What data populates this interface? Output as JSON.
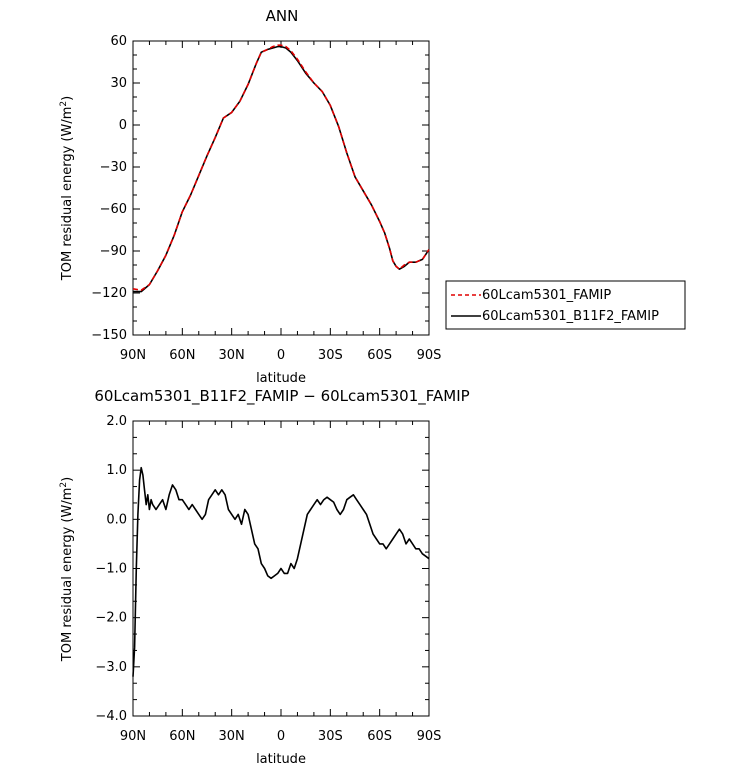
{
  "chart_data": [
    {
      "type": "line",
      "title": "ANN",
      "xlabel": "latitude",
      "ylabel": "TOM residual energy  (W/m²)",
      "ylabel_main": "TOM residual energy  (W/m",
      "ylabel_sup": "2",
      "ylabel_close": ")",
      "xlim": [
        90,
        -90
      ],
      "ylim": [
        -150,
        60
      ],
      "xticks": [
        90,
        60,
        30,
        0,
        -30,
        -60,
        -90
      ],
      "xtick_labels": [
        "90N",
        "60N",
        "30N",
        "0",
        "30S",
        "60S",
        "90S"
      ],
      "yticks": [
        60,
        30,
        0,
        -30,
        -60,
        -90,
        -120,
        -150
      ],
      "ytick_labels": [
        "60",
        "30",
        "0",
        "−30",
        "−60",
        "−90",
        "−120",
        "−150"
      ],
      "legend_position": "right, outside plot",
      "series": [
        {
          "name": "60Lcam5301_FAMIP",
          "color": "#e00000",
          "dash": "dashed",
          "points": [
            [
              90,
              -117
            ],
            [
              85,
              -118
            ],
            [
              80,
              -114
            ],
            [
              75,
              -104
            ],
            [
              70,
              -93
            ],
            [
              65,
              -79
            ],
            [
              60,
              -62
            ],
            [
              55,
              -50
            ],
            [
              50,
              -36
            ],
            [
              45,
              -22
            ],
            [
              40,
              -9
            ],
            [
              35,
              5
            ],
            [
              30,
              9
            ],
            [
              25,
              17
            ],
            [
              20,
              29
            ],
            [
              15,
              44
            ],
            [
              12,
              52
            ],
            [
              8,
              54
            ],
            [
              5,
              56
            ],
            [
              2,
              57
            ],
            [
              0,
              57
            ],
            [
              -3,
              56
            ],
            [
              -6,
              53
            ],
            [
              -10,
              47
            ],
            [
              -15,
              38
            ],
            [
              -20,
              30
            ],
            [
              -25,
              24
            ],
            [
              -30,
              14
            ],
            [
              -35,
              -1
            ],
            [
              -40,
              -20
            ],
            [
              -45,
              -37
            ],
            [
              -50,
              -47
            ],
            [
              -55,
              -57
            ],
            [
              -60,
              -69
            ],
            [
              -63,
              -77
            ],
            [
              -66,
              -88
            ],
            [
              -68,
              -97
            ],
            [
              -70,
              -101
            ],
            [
              -72,
              -103
            ],
            [
              -75,
              -100
            ],
            [
              -78,
              -98
            ],
            [
              -82,
              -98
            ],
            [
              -86,
              -96
            ],
            [
              -90,
              -89
            ]
          ]
        },
        {
          "name": "60Lcam5301_B11F2_FAMIP",
          "color": "#000000",
          "dash": "solid",
          "points": [
            [
              90,
              -119
            ],
            [
              85,
              -119
            ],
            [
              80,
              -114
            ],
            [
              75,
              -104
            ],
            [
              70,
              -93
            ],
            [
              65,
              -79
            ],
            [
              60,
              -62
            ],
            [
              55,
              -50
            ],
            [
              50,
              -36
            ],
            [
              45,
              -22
            ],
            [
              40,
              -9
            ],
            [
              35,
              5
            ],
            [
              30,
              9
            ],
            [
              25,
              17
            ],
            [
              20,
              29
            ],
            [
              15,
              44
            ],
            [
              12,
              52
            ],
            [
              8,
              54
            ],
            [
              5,
              55
            ],
            [
              2,
              56
            ],
            [
              0,
              56
            ],
            [
              -3,
              55
            ],
            [
              -6,
              52
            ],
            [
              -10,
              46
            ],
            [
              -15,
              37
            ],
            [
              -20,
              30
            ],
            [
              -25,
              24
            ],
            [
              -30,
              14
            ],
            [
              -35,
              -1
            ],
            [
              -40,
              -20
            ],
            [
              -45,
              -37
            ],
            [
              -50,
              -47
            ],
            [
              -55,
              -57
            ],
            [
              -60,
              -69
            ],
            [
              -63,
              -77
            ],
            [
              -66,
              -88
            ],
            [
              -68,
              -97
            ],
            [
              -70,
              -101
            ],
            [
              -72,
              -103
            ],
            [
              -75,
              -101
            ],
            [
              -78,
              -98
            ],
            [
              -82,
              -98
            ],
            [
              -86,
              -96
            ],
            [
              -90,
              -89
            ]
          ]
        }
      ]
    },
    {
      "type": "line",
      "title": "60Lcam5301_B11F2_FAMIP − 60Lcam5301_FAMIP",
      "xlabel": "latitude",
      "ylabel": "TOM residual energy  (W/m²)",
      "ylabel_main": "TOM residual energy  (W/m",
      "ylabel_sup": "2",
      "ylabel_close": ")",
      "xlim": [
        90,
        -90
      ],
      "ylim": [
        -4.0,
        2.0
      ],
      "xticks": [
        90,
        60,
        30,
        0,
        -30,
        -60,
        -90
      ],
      "xtick_labels": [
        "90N",
        "60N",
        "30N",
        "0",
        "30S",
        "60S",
        "90S"
      ],
      "yticks": [
        2.0,
        1.0,
        0.0,
        -1.0,
        -2.0,
        -3.0,
        -4.0
      ],
      "ytick_labels": [
        "2.0",
        "1.0",
        "0.0",
        "−1.0",
        "−2.0",
        "−3.0",
        "−4.0"
      ],
      "series": [
        {
          "color": "#000000",
          "dash": "solid",
          "points": [
            [
              90,
              -3.2
            ],
            [
              89,
              -2.6
            ],
            [
              88,
              -1.0
            ],
            [
              87,
              0.1
            ],
            [
              86,
              0.8
            ],
            [
              85,
              1.05
            ],
            [
              84,
              0.9
            ],
            [
              83,
              0.6
            ],
            [
              82,
              0.3
            ],
            [
              81,
              0.5
            ],
            [
              80,
              0.2
            ],
            [
              79,
              0.4
            ],
            [
              78,
              0.3
            ],
            [
              76,
              0.2
            ],
            [
              74,
              0.3
            ],
            [
              72,
              0.4
            ],
            [
              70,
              0.2
            ],
            [
              68,
              0.5
            ],
            [
              66,
              0.7
            ],
            [
              64,
              0.6
            ],
            [
              62,
              0.4
            ],
            [
              60,
              0.4
            ],
            [
              58,
              0.3
            ],
            [
              56,
              0.2
            ],
            [
              54,
              0.3
            ],
            [
              52,
              0.2
            ],
            [
              50,
              0.1
            ],
            [
              48,
              0.0
            ],
            [
              46,
              0.1
            ],
            [
              44,
              0.4
            ],
            [
              42,
              0.5
            ],
            [
              40,
              0.6
            ],
            [
              38,
              0.5
            ],
            [
              36,
              0.6
            ],
            [
              34,
              0.5
            ],
            [
              32,
              0.2
            ],
            [
              30,
              0.1
            ],
            [
              28,
              0.0
            ],
            [
              26,
              0.1
            ],
            [
              24,
              -0.1
            ],
            [
              22,
              0.2
            ],
            [
              20,
              0.1
            ],
            [
              18,
              -0.2
            ],
            [
              16,
              -0.5
            ],
            [
              14,
              -0.6
            ],
            [
              12,
              -0.9
            ],
            [
              10,
              -1.0
            ],
            [
              8,
              -1.15
            ],
            [
              6,
              -1.2
            ],
            [
              4,
              -1.15
            ],
            [
              2,
              -1.1
            ],
            [
              0,
              -1.0
            ],
            [
              -2,
              -1.1
            ],
            [
              -4,
              -1.1
            ],
            [
              -6,
              -0.9
            ],
            [
              -8,
              -1.0
            ],
            [
              -10,
              -0.8
            ],
            [
              -12,
              -0.5
            ],
            [
              -14,
              -0.2
            ],
            [
              -16,
              0.1
            ],
            [
              -18,
              0.2
            ],
            [
              -20,
              0.3
            ],
            [
              -22,
              0.4
            ],
            [
              -24,
              0.3
            ],
            [
              -26,
              0.4
            ],
            [
              -28,
              0.45
            ],
            [
              -30,
              0.4
            ],
            [
              -32,
              0.35
            ],
            [
              -34,
              0.2
            ],
            [
              -36,
              0.1
            ],
            [
              -38,
              0.2
            ],
            [
              -40,
              0.4
            ],
            [
              -42,
              0.45
            ],
            [
              -44,
              0.5
            ],
            [
              -46,
              0.4
            ],
            [
              -48,
              0.3
            ],
            [
              -50,
              0.2
            ],
            [
              -52,
              0.1
            ],
            [
              -54,
              -0.1
            ],
            [
              -56,
              -0.3
            ],
            [
              -58,
              -0.4
            ],
            [
              -60,
              -0.5
            ],
            [
              -62,
              -0.5
            ],
            [
              -64,
              -0.6
            ],
            [
              -66,
              -0.5
            ],
            [
              -68,
              -0.4
            ],
            [
              -70,
              -0.3
            ],
            [
              -72,
              -0.2
            ],
            [
              -74,
              -0.3
            ],
            [
              -76,
              -0.5
            ],
            [
              -78,
              -0.4
            ],
            [
              -80,
              -0.5
            ],
            [
              -82,
              -0.6
            ],
            [
              -84,
              -0.6
            ],
            [
              -86,
              -0.7
            ],
            [
              -88,
              -0.75
            ],
            [
              -90,
              -0.8
            ]
          ]
        }
      ]
    }
  ]
}
